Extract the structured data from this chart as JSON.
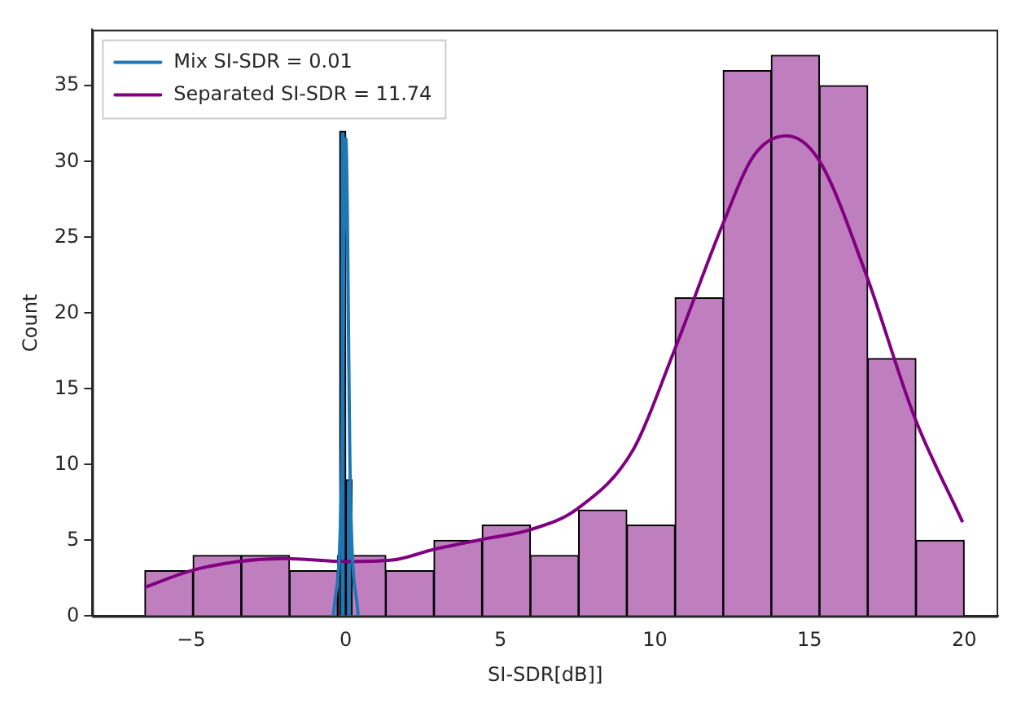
{
  "chart_data": {
    "type": "histogram",
    "xlabel": "SI-SDR[dB]]",
    "ylabel": "Count",
    "xlim": [
      -8.2,
      21.1
    ],
    "xticks": [
      -5,
      0,
      5,
      10,
      15,
      20
    ],
    "ylim": [
      0,
      38.7
    ],
    "yticks": [
      0,
      5,
      10,
      15,
      20,
      25,
      30,
      35
    ],
    "legend": "top left",
    "series": [
      {
        "color": "#bf7fbf",
        "bins": [
          -6.5,
          -4.94,
          -3.38,
          -1.82,
          -0.26,
          1.29,
          2.85,
          4.41,
          5.97,
          7.53,
          9.09,
          10.65,
          12.21,
          13.76,
          15.32,
          16.88,
          18.44,
          20.0
        ],
        "values": [
          3,
          4,
          4,
          3,
          4,
          3,
          5,
          6,
          4,
          7,
          6,
          21,
          36,
          37,
          35,
          17,
          5
        ]
      },
      {
        "color": "#1f77b4",
        "bins": [
          -0.2,
          0,
          0.2
        ],
        "values": [
          32,
          9
        ]
      },
      {
        "type": "line",
        "name": "Mix SI-SDR = 0.01",
        "color": "#1f77b4",
        "x": [
          -0.4,
          -0.15,
          0,
          0.15,
          0.4
        ],
        "values": [
          0,
          8,
          31.5,
          8,
          0
        ]
      },
      {
        "type": "line",
        "name": "Separated SI-SDR = 11.74",
        "color": "#800080",
        "x": [
          -6.5,
          -5,
          -3.5,
          -2,
          0,
          1.5,
          2.85,
          4.5,
          5.96,
          7.5,
          9.3,
          10.6,
          12.2,
          13.2,
          14.25,
          15.3,
          16.8,
          18.4,
          19.95
        ],
        "values": [
          1.9,
          3.0,
          3.6,
          3.8,
          3.6,
          3.7,
          4.4,
          5.1,
          5.7,
          7.1,
          11,
          17.4,
          25.9,
          30.4,
          31.7,
          30.1,
          22.7,
          13.1,
          6.2
        ]
      }
    ]
  }
}
